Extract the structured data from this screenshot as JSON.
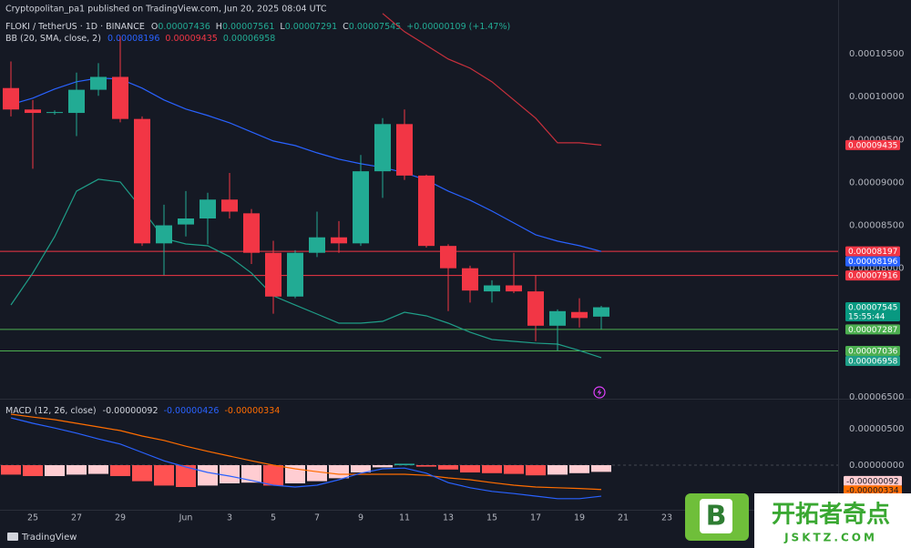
{
  "chart_data": {
    "type": "candlestick",
    "publisher": "Cryptopolitan_pa1 published on TradingView.com, Jun 20, 2025 08:04 UTC",
    "title": "FLOKI / TetherUS · 1D · BINANCE",
    "legend_keys": [
      "O",
      "H",
      "L",
      "C"
    ],
    "change": "+0.00000109 (+1.47%)",
    "countdown": "15:55:44",
    "footer": "TradingView",
    "watermark": {
      "logo": "B",
      "brand": "开拓者奇点",
      "site": "JSKTZ.COM"
    },
    "categories": [
      null,
      "25",
      null,
      "27",
      null,
      "29",
      null,
      null,
      "Jun",
      null,
      "3",
      null,
      "5",
      null,
      "7",
      null,
      "9",
      null,
      "11",
      null,
      "13",
      null,
      "15",
      null,
      "17",
      null,
      "19",
      null,
      "21",
      null,
      "23"
    ],
    "up_color": "#22ab94",
    "down_color": "#f23645",
    "open": [
      0.000101,
      9.85e-05,
      9.81e-05,
      9.81e-05,
      0.0001008,
      0.0001023,
      9.74e-05,
      8.29e-05,
      8.51e-05,
      8.58e-05,
      8.8e-05,
      8.64e-05,
      8.18e-05,
      7.67e-05,
      8.18e-05,
      8.36e-05,
      8.29e-05,
      9.13e-05,
      9.68e-05,
      9.08e-05,
      8.26e-05,
      8e-05,
      7.73e-05,
      7.8e-05,
      7.73e-05,
      7.33e-05,
      7.49e-05,
      7.436e-05,
      null,
      null,
      null
    ],
    "high": [
      0.0001041,
      9.96e-05,
      9.84e-05,
      0.0001028,
      0.0001039,
      0.000107,
      9.77e-05,
      8.74e-05,
      8.9e-05,
      8.88e-05,
      9.11e-05,
      8.69e-05,
      8.32e-05,
      8.21e-05,
      8.66e-05,
      8.55e-05,
      9.32e-05,
      9.75e-05,
      9.85e-05,
      9.09e-05,
      8.28e-05,
      8.03e-05,
      7.86e-05,
      8.18e-05,
      7.92e-05,
      7.52e-05,
      7.65e-05,
      7.561e-05,
      null,
      null,
      null
    ],
    "low": [
      9.77e-05,
      9.16e-05,
      9.79e-05,
      9.54e-05,
      0.0001001,
      9.7e-05,
      8.26e-05,
      7.92e-05,
      8.37e-05,
      8.28e-05,
      8.58e-05,
      8.05e-05,
      7.47e-05,
      7.65e-05,
      8.13e-05,
      8.18e-05,
      8.26e-05,
      8.82e-05,
      9.03e-05,
      8.24e-05,
      7.5e-05,
      7.6e-05,
      7.6e-05,
      7.71e-05,
      7.15e-05,
      7.04e-05,
      7.31e-05,
      7.291e-05,
      null,
      null,
      null
    ],
    "close": [
      9.85e-05,
      9.81e-05,
      9.82e-05,
      0.0001008,
      0.0001023,
      9.74e-05,
      8.29e-05,
      8.5e-05,
      8.58e-05,
      8.8e-05,
      8.66e-05,
      8.18e-05,
      7.67e-05,
      8.18e-05,
      8.36e-05,
      8.29e-05,
      9.13e-05,
      9.68e-05,
      9.08e-05,
      8.26e-05,
      8e-05,
      7.74e-05,
      7.8e-05,
      7.73e-05,
      7.33e-05,
      7.5e-05,
      7.42e-05,
      7.545e-05,
      null,
      null,
      null
    ],
    "ylim": [
      6.49e-05,
      0.0001102
    ],
    "yticks": [
      {
        "value": 0.000105,
        "label": "0.00010500"
      },
      {
        "value": 0.0001,
        "label": "0.00010000"
      },
      {
        "value": 9.5e-05,
        "label": "0.00009500"
      },
      {
        "value": 9e-05,
        "label": "0.00009000"
      },
      {
        "value": 8.5e-05,
        "label": "0.00008500"
      },
      {
        "value": 8e-05,
        "label": "0.00008000"
      },
      {
        "value": 6.5e-05,
        "label": "0.00006500"
      }
    ],
    "grid": false,
    "hlines": [
      {
        "value": 8.197e-05,
        "color": "#f23645"
      },
      {
        "value": 7.916e-05,
        "color": "#f23645"
      },
      {
        "value": 7.287e-05,
        "color": "#4caf50"
      },
      {
        "value": 7.036e-05,
        "color": "#4caf50"
      }
    ],
    "bb": {
      "label": "BB (20, SMA, close, 2)",
      "basis": {
        "color": "#2962ff",
        "values": [
          9.908e-05,
          9.982e-05,
          0.00010088,
          0.00010173,
          0.00010216,
          0.00010205,
          0.00010099,
          9.961e-05,
          9.855e-05,
          9.78e-05,
          9.695e-05,
          9.589e-05,
          9.483e-05,
          9.43e-05,
          9.345e-05,
          9.271e-05,
          9.218e-05,
          9.175e-05,
          9.112e-05,
          9.027e-05,
          8.899e-05,
          8.793e-05,
          8.666e-05,
          8.528e-05,
          8.39e-05,
          8.316e-05,
          8.263e-05,
          8.196e-05,
          null,
          null,
          null
        ]
      },
      "upper": {
        "color": "#c8303c",
        "values": [
          null,
          null,
          null,
          null,
          null,
          null,
          null,
          null,
          null,
          null,
          null,
          null,
          null,
          null,
          null,
          null,
          null,
          0.00010969,
          0.00010757,
          0.00010598,
          0.00010438,
          0.00010332,
          0.00010173,
          9.961e-05,
          9.749e-05,
          9.462e-05,
          9.462e-05,
          9.435e-05,
          null,
          null,
          null
        ]
      },
      "lower": {
        "color": "#1f9e88",
        "values": [
          7.572e-05,
          7.944e-05,
          8.368e-05,
          8.899e-05,
          9.037e-05,
          9.005e-05,
          8.687e-05,
          8.347e-05,
          8.283e-05,
          8.262e-05,
          8.135e-05,
          7.944e-05,
          7.678e-05,
          7.572e-05,
          7.466e-05,
          7.36e-05,
          7.36e-05,
          7.381e-05,
          7.487e-05,
          7.445e-05,
          7.36e-05,
          7.254e-05,
          7.169e-05,
          7.148e-05,
          7.127e-05,
          7.116e-05,
          7.041e-05,
          6.958e-05,
          null,
          null,
          null
        ]
      }
    },
    "macd": {
      "label": "MACD (12, 26, close)",
      "ylim": [
        -6.125e-06,
        8.625e-06
      ],
      "yticks": [
        {
          "value": 5e-06,
          "label": "0.00000500"
        },
        {
          "value": 0,
          "label": "0.00000000"
        }
      ],
      "histogram": {
        "colors": [
          "#ff5252",
          "#ffcdd2",
          "#26a69a"
        ],
        "values": [
          -1.3e-06,
          -1.5e-06,
          -1.5e-06,
          -1.3e-06,
          -1.2e-06,
          -1.5e-06,
          -2.2e-06,
          -2.8e-06,
          -3e-06,
          -2.8e-06,
          -2.5e-06,
          -2.4e-06,
          -2.8e-06,
          -2.5e-06,
          -2.2e-06,
          -1.8e-06,
          -1e-06,
          -3e-07,
          2e-07,
          -2e-07,
          -6e-07,
          -1e-06,
          -1.1e-06,
          -1.2e-06,
          -1.4e-06,
          -1.3e-06,
          -1.1e-06,
          -9.2e-07,
          null,
          null,
          null
        ],
        "value_labels": [
          null,
          null,
          null,
          null,
          null,
          null,
          null,
          null,
          null,
          null,
          null,
          null,
          null,
          null,
          null,
          null,
          null,
          null,
          null,
          null,
          null,
          null,
          null,
          null,
          null,
          null,
          null,
          "-0.00000092",
          null,
          null,
          null
        ]
      },
      "macd": {
        "color": "#2962ff",
        "values": [
          6.5e-06,
          5.75e-06,
          5.1e-06,
          4.4e-06,
          3.6e-06,
          2.9e-06,
          1.75e-06,
          6e-07,
          -2.5e-07,
          -1e-06,
          -1.5e-06,
          -2.1e-06,
          -2.75e-06,
          -3e-06,
          -2.75e-06,
          -2e-06,
          -1.1e-06,
          -5e-07,
          -4e-07,
          -1.1e-06,
          -2.4e-06,
          -3.1e-06,
          -3.6e-06,
          -3.9e-06,
          -4.25e-06,
          -4.6e-06,
          -4.6e-06,
          -4.26e-06,
          null,
          null,
          null
        ]
      },
      "signal": {
        "color": "#ff6d00",
        "values": [
          7e-06,
          6.6e-06,
          6.25e-06,
          5.75e-06,
          5.25e-06,
          4.75e-06,
          4e-06,
          3.4e-06,
          2.6e-06,
          1.9e-06,
          1.25e-06,
          6e-07,
          0,
          -5e-07,
          -9e-07,
          -1.25e-06,
          -1.25e-06,
          -1.25e-06,
          -1.25e-06,
          -1.4e-06,
          -1.75e-06,
          -2e-06,
          -2.4e-06,
          -2.75e-06,
          -3e-06,
          -3.1e-06,
          -3.2e-06,
          -3.34e-06,
          null,
          null,
          null
        ]
      }
    }
  }
}
